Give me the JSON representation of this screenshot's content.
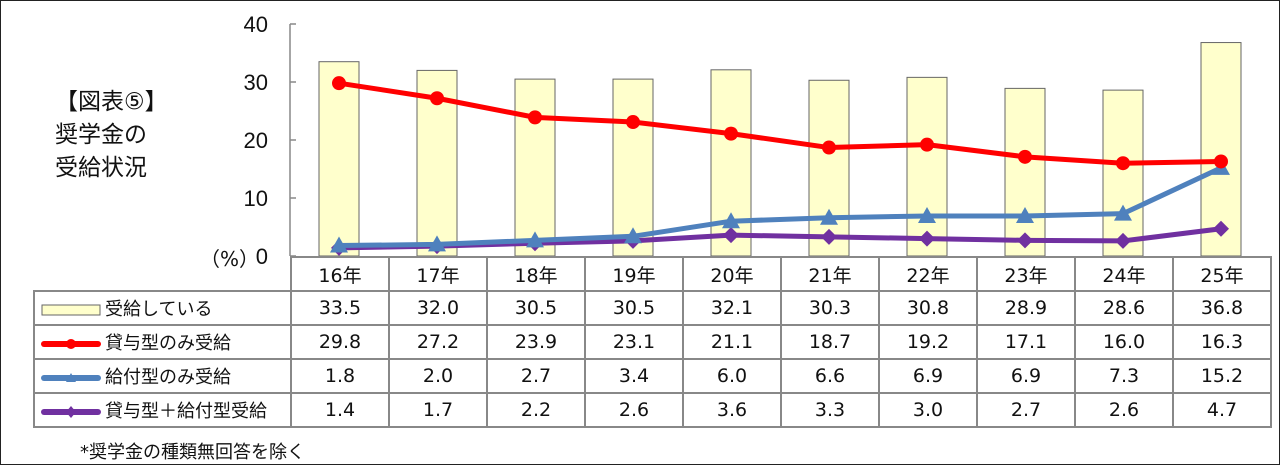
{
  "title": {
    "line1": "【図表⑤】",
    "line2": "奨学金の",
    "line3": "受給状況"
  },
  "y_axis": {
    "unit": "（%）",
    "ticks": [
      "40",
      "30",
      "20",
      "10",
      "0"
    ]
  },
  "table": {
    "years": [
      "16年",
      "17年",
      "18年",
      "19年",
      "20年",
      "21年",
      "22年",
      "23年",
      "24年",
      "25年"
    ],
    "rows": [
      {
        "label": "受給している",
        "values": [
          "33.5",
          "32.0",
          "30.5",
          "30.5",
          "32.1",
          "30.3",
          "30.8",
          "28.9",
          "28.6",
          "36.8"
        ]
      },
      {
        "label": "貸与型のみ受給",
        "values": [
          "29.8",
          "27.2",
          "23.9",
          "23.1",
          "21.1",
          "18.7",
          "19.2",
          "17.1",
          "16.0",
          "16.3"
        ]
      },
      {
        "label": "給付型のみ受給",
        "values": [
          "1.8",
          "2.0",
          "2.7",
          "3.4",
          "6.0",
          "6.6",
          "6.9",
          "6.9",
          "7.3",
          "15.2"
        ]
      },
      {
        "label": "貸与型＋給付型受給",
        "values": [
          "1.4",
          "1.7",
          "2.2",
          "2.6",
          "3.6",
          "3.3",
          "3.0",
          "2.7",
          "2.6",
          "4.7"
        ]
      }
    ]
  },
  "note": "*奨学金の種類無回答を除く",
  "colors": {
    "bar_fill": "#FFFFCC",
    "bar_stroke": "#666666",
    "loan_only": "#FF0000",
    "grant_only": "#4F81BD",
    "both": "#7030A0"
  },
  "chart_data": {
    "type": "bar+line",
    "title": "【図表⑤】奨学金の受給状況",
    "categories": [
      "16年",
      "17年",
      "18年",
      "19年",
      "20年",
      "21年",
      "22年",
      "23年",
      "24年",
      "25年"
    ],
    "series": [
      {
        "name": "受給している",
        "type": "bar",
        "values": [
          33.5,
          32.0,
          30.5,
          30.5,
          32.1,
          30.3,
          30.8,
          28.9,
          28.6,
          36.8
        ]
      },
      {
        "name": "貸与型のみ受給",
        "type": "line",
        "marker": "circle",
        "values": [
          29.8,
          27.2,
          23.9,
          23.1,
          21.1,
          18.7,
          19.2,
          17.1,
          16.0,
          16.3
        ]
      },
      {
        "name": "給付型のみ受給",
        "type": "line",
        "marker": "triangle",
        "values": [
          1.8,
          2.0,
          2.7,
          3.4,
          6.0,
          6.6,
          6.9,
          6.9,
          7.3,
          15.2
        ]
      },
      {
        "name": "貸与型＋給付型受給",
        "type": "line",
        "marker": "diamond",
        "values": [
          1.4,
          1.7,
          2.2,
          2.6,
          3.6,
          3.3,
          3.0,
          2.7,
          2.6,
          4.7
        ]
      }
    ],
    "xlabel": "",
    "ylabel": "（%）",
    "ylim": [
      0,
      40
    ],
    "yticks": [
      0,
      10,
      20,
      30,
      40
    ],
    "grid": false,
    "legend_position": "data-table",
    "footnote": "*奨学金の種類無回答を除く"
  }
}
